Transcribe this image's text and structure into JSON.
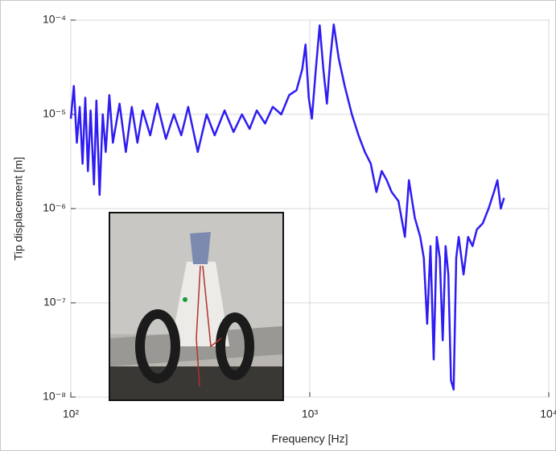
{
  "chart_data": {
    "type": "line",
    "xlabel": "Frequency [Hz]",
    "ylabel": "Tip displacement [m]",
    "xscale": "log",
    "yscale": "log",
    "grid": true,
    "color": "#2e1cf2",
    "xlim": [
      100,
      10000
    ],
    "xticks": [
      {
        "value": 100,
        "label": "10²"
      },
      {
        "value": 1000,
        "label": "10³"
      },
      {
        "value": 10000,
        "label": "10⁴"
      }
    ],
    "ylim": [
      1e-08,
      0.0001
    ],
    "yticks": [
      {
        "value": 1e-08,
        "label": "10⁻⁸"
      },
      {
        "value": 1e-07,
        "label": "10⁻⁷"
      },
      {
        "value": 1e-06,
        "label": "10⁻⁶"
      },
      {
        "value": 1e-05,
        "label": "10⁻⁵"
      },
      {
        "value": 0.0001,
        "label": "10⁻⁴"
      }
    ],
    "x": [
      100,
      103,
      106,
      109,
      112,
      115,
      118,
      121,
      125,
      128,
      132,
      136,
      140,
      145,
      150,
      160,
      170,
      180,
      190,
      200,
      215,
      230,
      250,
      270,
      290,
      310,
      340,
      370,
      400,
      440,
      480,
      520,
      560,
      600,
      650,
      700,
      760,
      820,
      880,
      930,
      960,
      990,
      1020,
      1060,
      1100,
      1140,
      1180,
      1220,
      1260,
      1320,
      1400,
      1500,
      1600,
      1700,
      1800,
      1900,
      2000,
      2100,
      2200,
      2350,
      2500,
      2600,
      2750,
      2900,
      3000,
      3100,
      3200,
      3300,
      3400,
      3500,
      3600,
      3700,
      3800,
      3900,
      4000,
      4100,
      4200,
      4400,
      4600,
      4800,
      5000,
      5300,
      5600,
      5900,
      6100,
      6300,
      6500
    ],
    "values": [
      9e-06,
      2e-05,
      5e-06,
      1.2e-05,
      3e-06,
      1.5e-05,
      2.5e-06,
      1.1e-05,
      1.8e-06,
      1.4e-05,
      1.4e-06,
      1e-05,
      4e-06,
      1.6e-05,
      5e-06,
      1.3e-05,
      4e-06,
      1.2e-05,
      5e-06,
      1.1e-05,
      6e-06,
      1.3e-05,
      5.5e-06,
      1e-05,
      6e-06,
      1.2e-05,
      4e-06,
      1e-05,
      6e-06,
      1.1e-05,
      6.5e-06,
      1e-05,
      7e-06,
      1.1e-05,
      8e-06,
      1.2e-05,
      1e-05,
      1.6e-05,
      1.8e-05,
      3e-05,
      5.5e-05,
      1.5e-05,
      9e-06,
      3e-05,
      8.8e-05,
      3e-05,
      1.3e-05,
      4e-05,
      9e-05,
      4e-05,
      2e-05,
      1e-05,
      6e-06,
      4e-06,
      3e-06,
      1.5e-06,
      2.5e-06,
      2e-06,
      1.5e-06,
      1.2e-06,
      5e-07,
      2e-06,
      8e-07,
      5e-07,
      3e-07,
      6e-08,
      4e-07,
      2.5e-08,
      5e-07,
      3e-07,
      4e-08,
      4e-07,
      2e-07,
      1.5e-08,
      1.2e-08,
      3e-07,
      5e-07,
      2e-07,
      5e-07,
      4e-07,
      6e-07,
      7e-07,
      1e-06,
      1.5e-06,
      2e-06,
      1e-06,
      1.3e-06
    ]
  }
}
